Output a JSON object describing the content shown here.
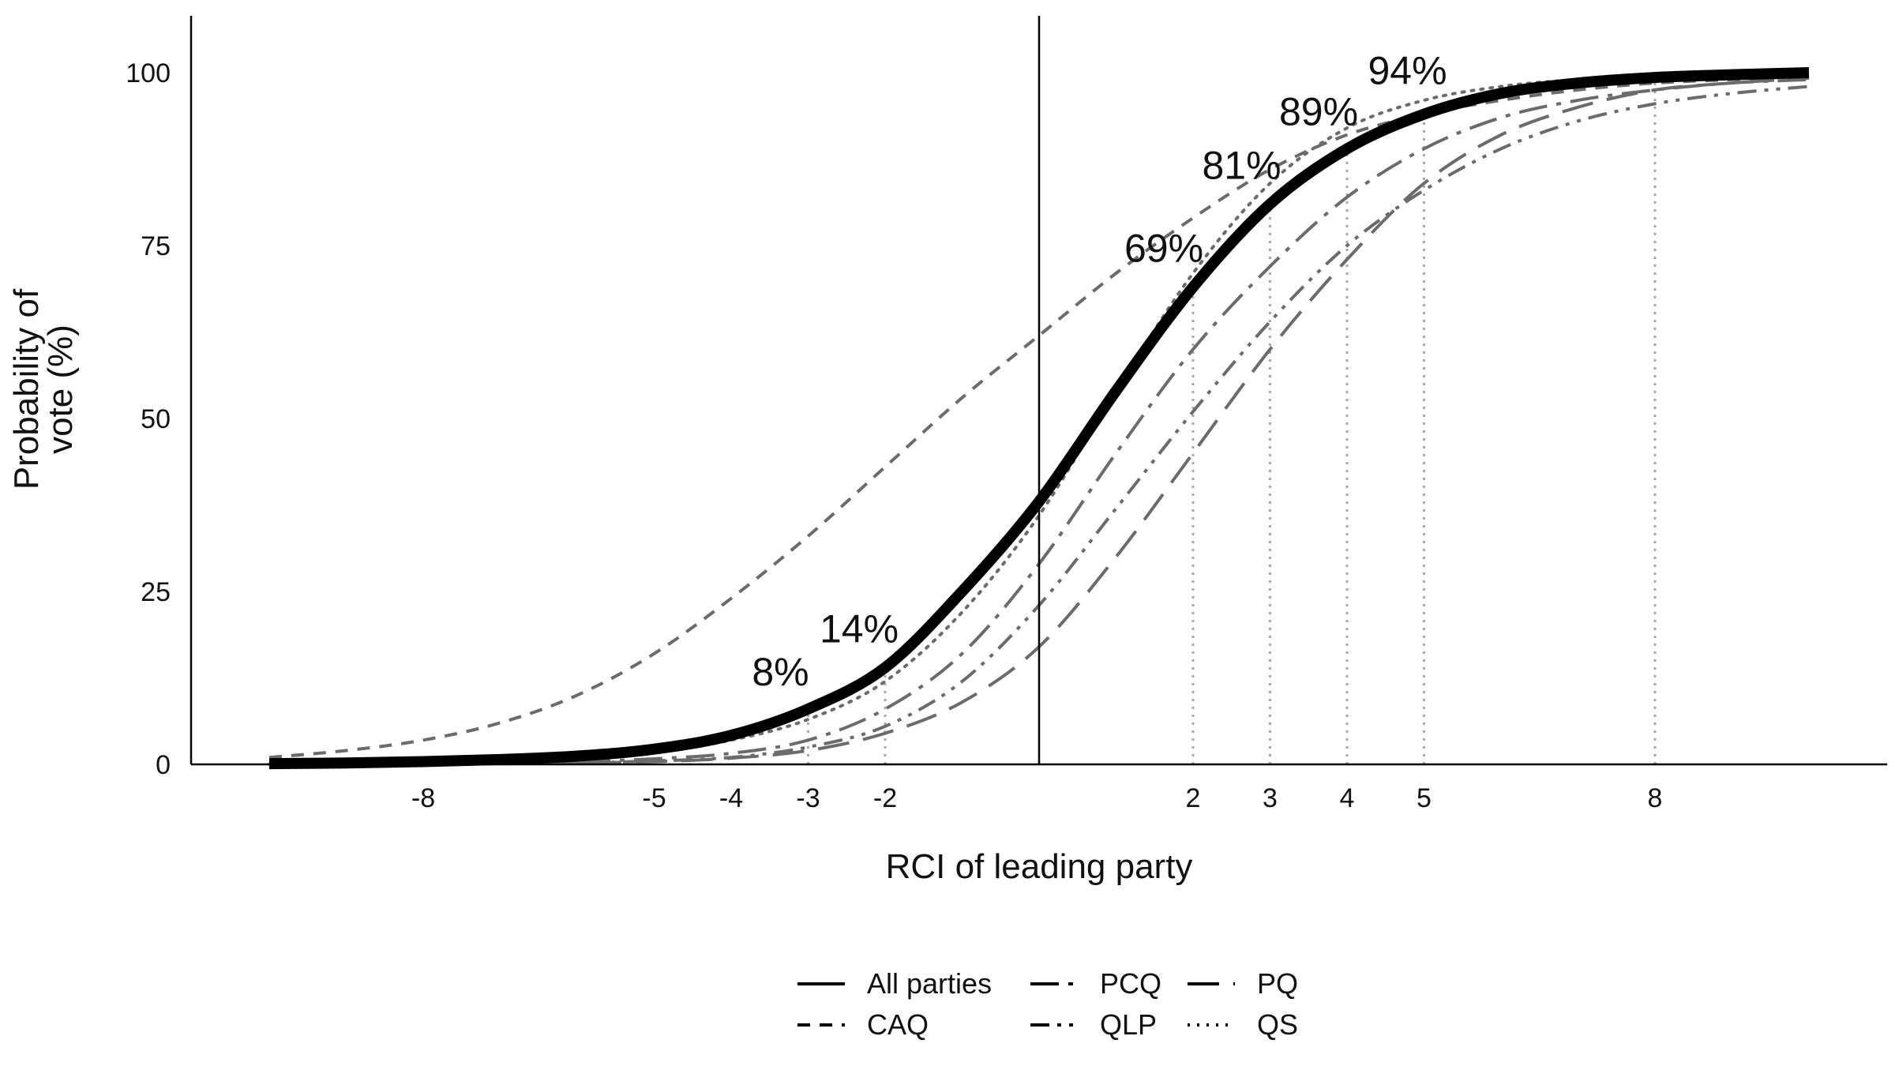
{
  "chart_data": {
    "type": "line",
    "title": "",
    "xlabel": "RCI of leading party",
    "ylabel": "Probability of vote (%)",
    "ylabel_lines": [
      "Probability of",
      "vote (%)"
    ],
    "xlim": [
      -10,
      11
    ],
    "ylim": [
      0,
      100
    ],
    "x_ticks": [
      -8,
      -5,
      -4,
      -3,
      -2,
      2,
      3,
      4,
      5,
      8
    ],
    "y_ticks": [
      0,
      25,
      50,
      75,
      100
    ],
    "vertical_line_x": 0,
    "reference_x": [
      -3,
      -2,
      2,
      3,
      4,
      5,
      8
    ],
    "grid": false,
    "legend_position": "bottom-center",
    "series": [
      {
        "name": "All parties",
        "dash": "solid",
        "color": "#000000",
        "width": 14,
        "x": [
          -10,
          -9,
          -8,
          -7,
          -6,
          -5,
          -4,
          -3,
          -2,
          -1,
          0,
          1,
          2,
          3,
          4,
          5,
          6,
          7,
          8,
          9,
          10
        ],
        "y": [
          0.1,
          0.2,
          0.4,
          0.7,
          1.2,
          2.2,
          4.2,
          8,
          14,
          25,
          38,
          54,
          69,
          81,
          89,
          94,
          97,
          98.5,
          99.3,
          99.7,
          100
        ]
      },
      {
        "name": "CAQ",
        "dash": "short-dash",
        "color": "#6b6b6b",
        "width": 4,
        "x": [
          -10,
          -9,
          -8,
          -7,
          -6,
          -5,
          -4,
          -3,
          -2,
          -1,
          0,
          1,
          2,
          3,
          4,
          5,
          6,
          7,
          8,
          9,
          10
        ],
        "y": [
          1,
          2,
          3.5,
          6,
          10,
          16,
          24,
          33,
          43,
          53,
          62,
          71,
          79,
          86,
          91,
          94,
          96,
          97.5,
          98.5,
          99,
          99.5
        ]
      },
      {
        "name": "PCQ",
        "dash": "long-dash-dot",
        "color": "#6b6b6b",
        "width": 4,
        "x": [
          -10,
          -9,
          -8,
          -7,
          -6,
          -5,
          -4,
          -3,
          -2,
          -1,
          0,
          1,
          2,
          3,
          4,
          5,
          6,
          7,
          8,
          9,
          10
        ],
        "y": [
          0.02,
          0.05,
          0.1,
          0.2,
          0.4,
          0.8,
          1.6,
          3.5,
          8,
          16,
          29,
          45,
          60,
          72,
          82,
          89,
          93.5,
          96,
          97.5,
          98.5,
          99
        ]
      },
      {
        "name": "PQ",
        "dash": "long-dash",
        "color": "#6b6b6b",
        "width": 4,
        "x": [
          -10,
          -9,
          -8,
          -7,
          -6,
          -5,
          -4,
          -3,
          -2,
          -1,
          0,
          1,
          2,
          3,
          4,
          5,
          6,
          7,
          8,
          9,
          10
        ],
        "y": [
          0.01,
          0.02,
          0.05,
          0.1,
          0.2,
          0.4,
          0.9,
          2,
          4.5,
          9,
          17,
          30,
          45,
          60,
          73,
          84,
          91,
          95,
          97.5,
          98.5,
          99.2
        ]
      },
      {
        "name": "QLP",
        "dash": "dash-dot-dot",
        "color": "#6b6b6b",
        "width": 4,
        "x": [
          -10,
          -9,
          -8,
          -7,
          -6,
          -5,
          -4,
          -3,
          -2,
          -1,
          0,
          1,
          2,
          3,
          4,
          5,
          6,
          7,
          8,
          9,
          10
        ],
        "y": [
          0.01,
          0.02,
          0.05,
          0.1,
          0.2,
          0.5,
          1,
          2.5,
          5.5,
          12,
          23,
          37,
          51,
          64,
          75,
          83,
          89,
          93,
          95.5,
          97,
          98
        ]
      },
      {
        "name": "QS",
        "dash": "dotted",
        "color": "#6b6b6b",
        "width": 4,
        "x": [
          -10,
          -9,
          -8,
          -7,
          -6,
          -5,
          -4,
          -3,
          -2,
          -1,
          0,
          1,
          2,
          3,
          4,
          5,
          6,
          7,
          8,
          9,
          10
        ],
        "y": [
          0.01,
          0.03,
          0.1,
          0.3,
          0.8,
          1.8,
          3.5,
          6.5,
          12,
          22,
          36,
          54,
          71,
          84,
          92,
          96,
          98,
          99,
          99.5,
          99.7,
          99.9
        ]
      }
    ],
    "annotations": [
      {
        "x": -3,
        "y": 8,
        "label": "8%"
      },
      {
        "x": -2,
        "y": 14,
        "label": "14%"
      },
      {
        "x": 2,
        "y": 69,
        "label": "69%"
      },
      {
        "x": 3,
        "y": 81,
        "label": "81%"
      },
      {
        "x": 4,
        "y": 89,
        "label": "89%"
      },
      {
        "x": 5,
        "y": 94,
        "label": "94%"
      }
    ]
  }
}
